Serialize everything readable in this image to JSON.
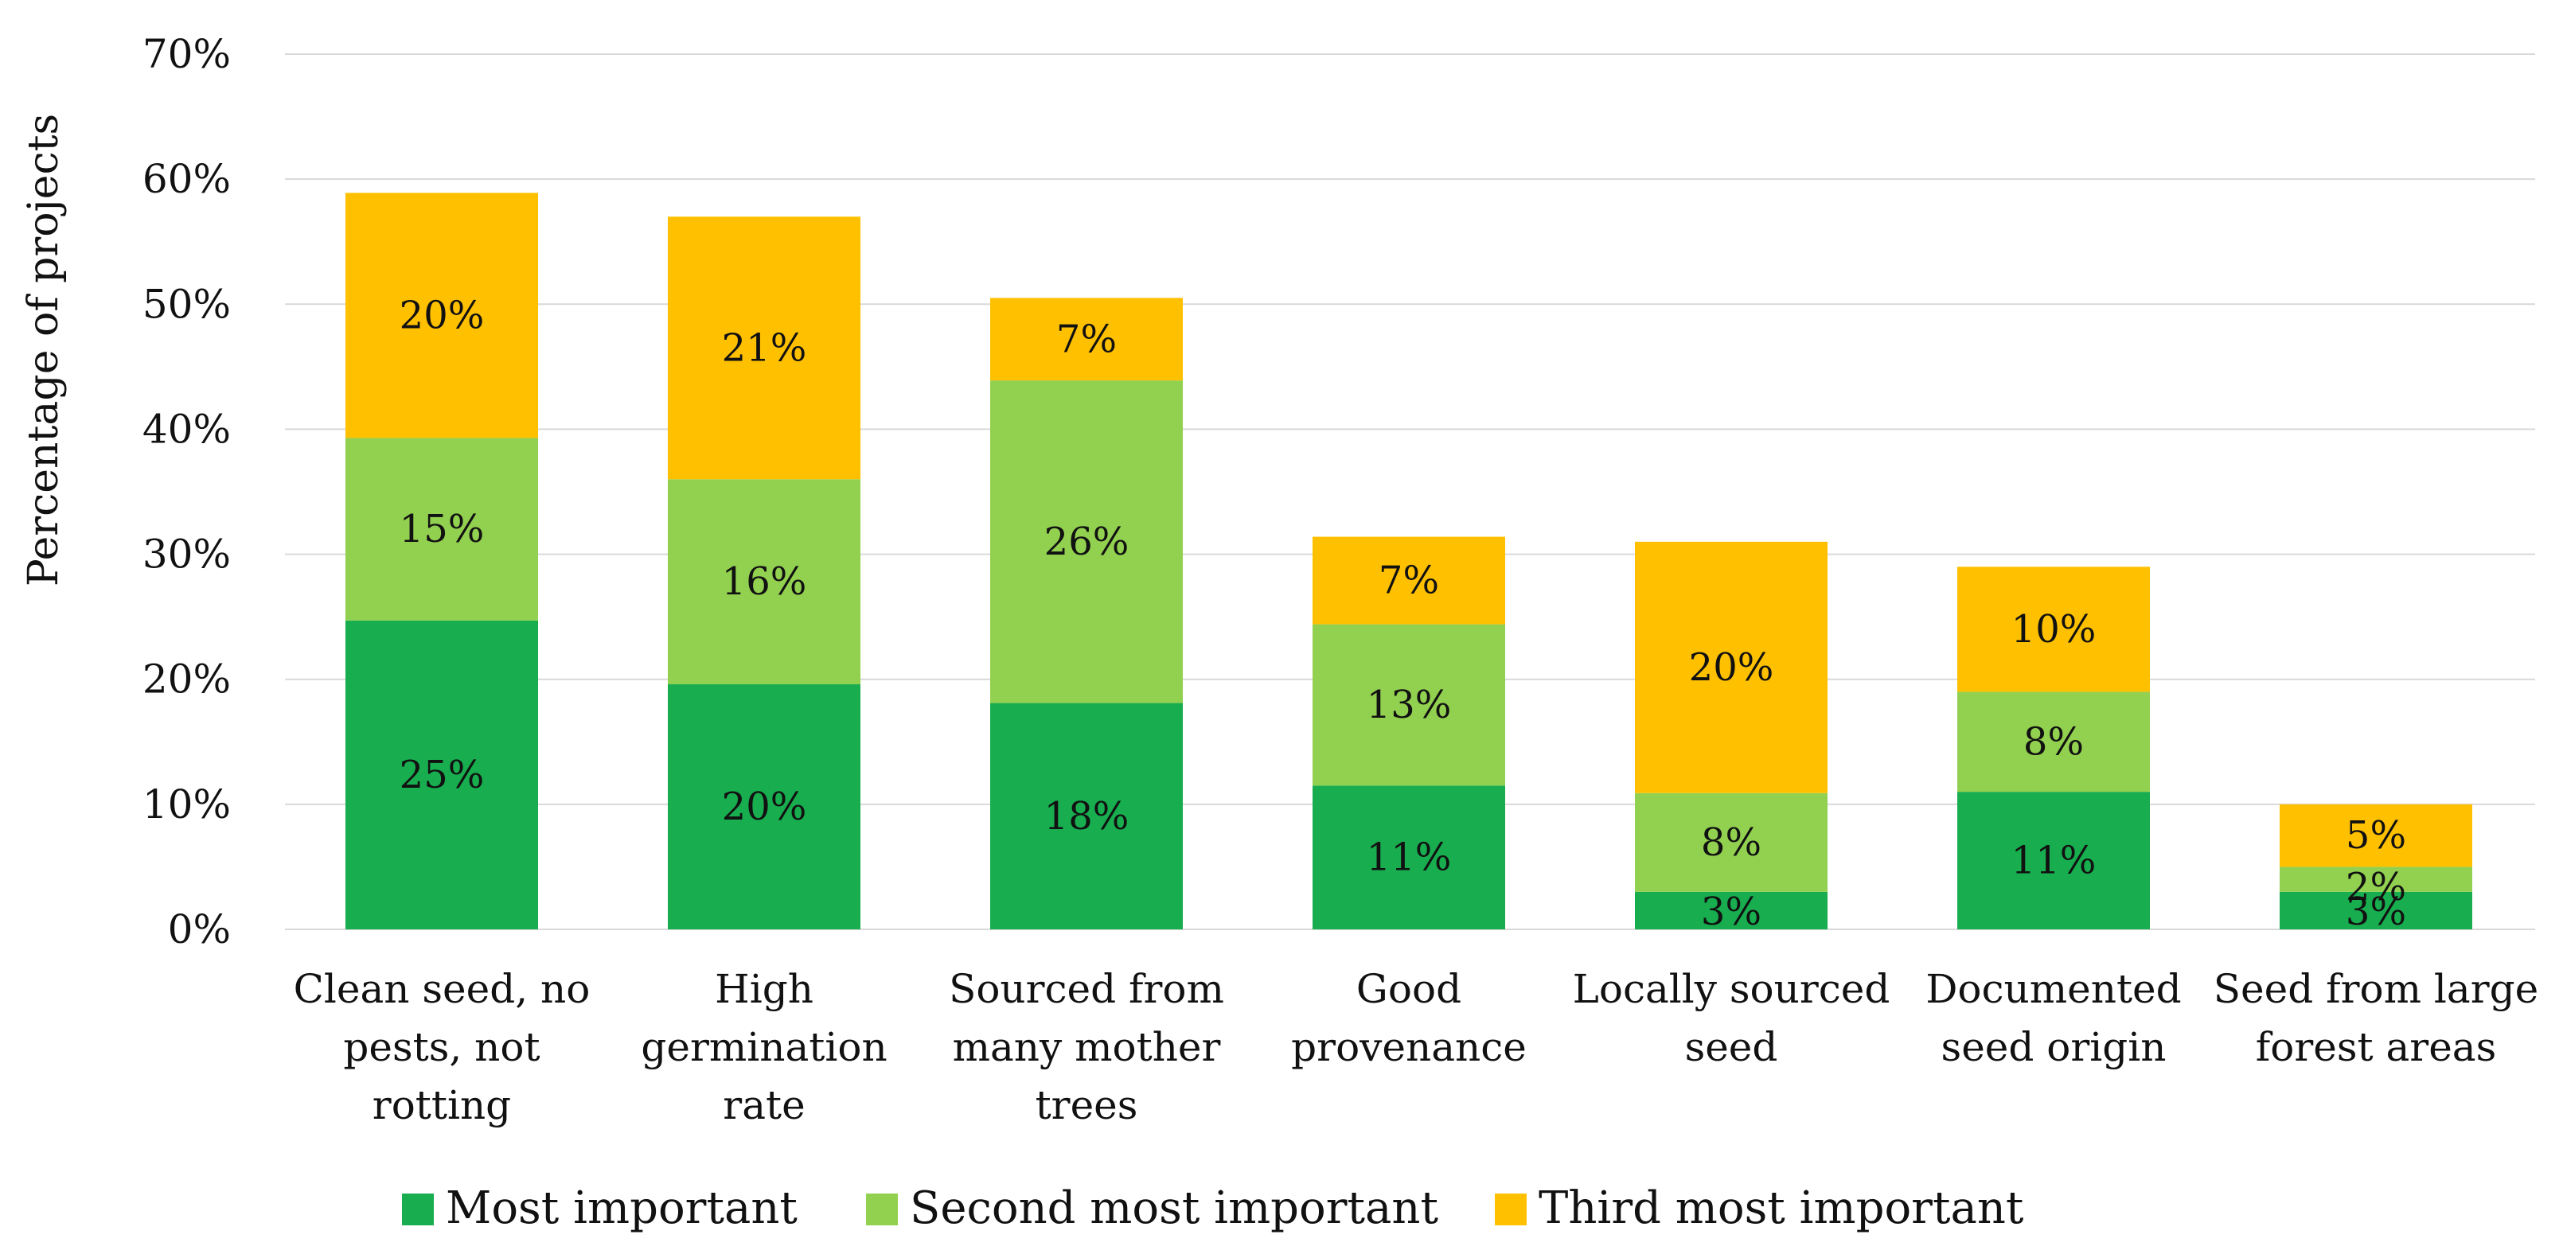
{
  "chart_data": {
    "type": "bar",
    "stacked": true,
    "title": "",
    "xlabel": "",
    "ylabel": "Percentage of projects",
    "ylim": [
      0,
      70
    ],
    "yticks": [
      "0%",
      "10%",
      "20%",
      "30%",
      "40%",
      "50%",
      "60%",
      "70%"
    ],
    "grid": true,
    "legend_position": "bottom",
    "categories": [
      [
        "Clean seed, no",
        "pests, not",
        "rotting"
      ],
      [
        "High",
        "germination",
        "rate"
      ],
      [
        "Sourced from",
        "many mother",
        "trees"
      ],
      [
        "Good",
        "provenance"
      ],
      [
        "Locally sourced",
        "seed"
      ],
      [
        "Documented",
        "seed origin"
      ],
      [
        "Seed from large",
        "forest areas"
      ]
    ],
    "series": [
      {
        "name": "Most important",
        "color": "#18ad4f",
        "values": [
          24.7,
          19.6,
          18.1,
          11.5,
          3.0,
          11.0,
          3.0
        ],
        "labels": [
          "25%",
          "20%",
          "18%",
          "11%",
          "3%",
          "11%",
          "3%"
        ]
      },
      {
        "name": "Second most important",
        "color": "#92d050",
        "values": [
          14.6,
          16.4,
          25.8,
          12.9,
          7.9,
          8.0,
          2.0
        ],
        "labels": [
          "15%",
          "16%",
          "26%",
          "13%",
          "8%",
          "8%",
          "2%"
        ]
      },
      {
        "name": "Third most important",
        "color": "#ffc000",
        "values": [
          19.6,
          21.0,
          6.6,
          7.0,
          20.1,
          10.0,
          5.0
        ],
        "labels": [
          "20%",
          "21%",
          "7%",
          "7%",
          "20%",
          "10%",
          "5%"
        ]
      }
    ]
  }
}
